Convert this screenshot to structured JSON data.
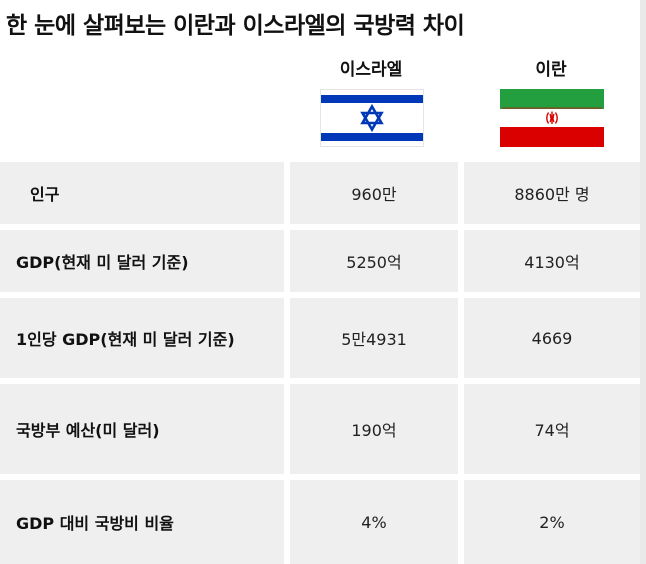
{
  "title": "한 눈에 살펴보는 이란과 이스라엘의 국방력 차이",
  "countries": {
    "israel": {
      "name": "이스라엘",
      "flag_icon": "israel-flag-icon",
      "colors": {
        "blue": "#0038b8",
        "white": "#ffffff"
      }
    },
    "iran": {
      "name": "이란",
      "flag_icon": "iran-flag-icon",
      "colors": {
        "green": "#239f40",
        "white": "#ffffff",
        "red": "#da0000"
      }
    }
  },
  "rows": [
    {
      "label": "인구",
      "israel": "960만",
      "iran": "8860만 명"
    },
    {
      "label": "GDP(현재 미 달러 기준)",
      "israel": "5250억",
      "iran": "4130억"
    },
    {
      "label": "1인당 GDP(현재 미 달러 기준)",
      "israel": "5만4931",
      "iran": "4669"
    },
    {
      "label": "국방부 예산(미 달러)",
      "israel": "190억",
      "iran": "74억"
    },
    {
      "label": "GDP 대비 국방비 비율",
      "israel": "4%",
      "iran": "2%"
    }
  ]
}
